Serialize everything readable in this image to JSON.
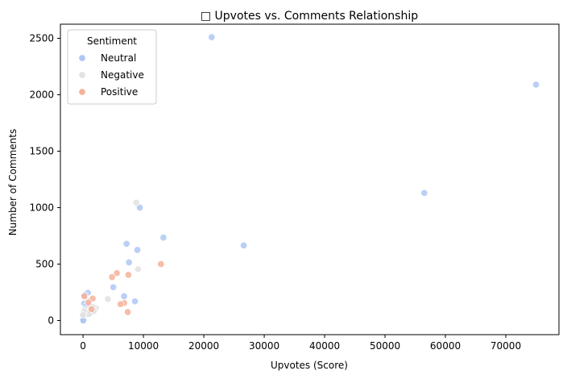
{
  "chart_data": {
    "type": "scatter",
    "title": "□ Upvotes vs. Comments Relationship",
    "xlabel": "Upvotes (Score)",
    "ylabel": "Number of Comments",
    "xlim": [
      -3750,
      78800
    ],
    "ylim": [
      -125,
      2625
    ],
    "xticks": [
      0,
      10000,
      20000,
      30000,
      40000,
      50000,
      60000,
      70000
    ],
    "yticks": [
      0,
      500,
      1000,
      1500,
      2000,
      2500
    ],
    "xtick_labels": [
      "0",
      "10000",
      "20000",
      "30000",
      "40000",
      "50000",
      "60000",
      "70000"
    ],
    "ytick_labels": [
      "0",
      "500",
      "1000",
      "1500",
      "2000",
      "2500"
    ],
    "grid": false,
    "legend": {
      "title": "Sentiment",
      "placement": "top-left"
    },
    "series": [
      {
        "name": "Neutral",
        "color": "#aec7f4",
        "points": [
          [
            21300,
            2510
          ],
          [
            75000,
            2090
          ],
          [
            56500,
            1130
          ],
          [
            9400,
            1000
          ],
          [
            13300,
            735
          ],
          [
            26600,
            665
          ],
          [
            7200,
            680
          ],
          [
            9000,
            625
          ],
          [
            7600,
            515
          ],
          [
            5000,
            295
          ],
          [
            6800,
            215
          ],
          [
            8600,
            170
          ],
          [
            800,
            245
          ],
          [
            300,
            225
          ],
          [
            200,
            150
          ],
          [
            500,
            130
          ],
          [
            1200,
            95
          ],
          [
            1400,
            75
          ],
          [
            700,
            55
          ],
          [
            100,
            40
          ],
          [
            0,
            20
          ],
          [
            -50,
            5
          ],
          [
            50,
            0
          ]
        ]
      },
      {
        "name": "Negative",
        "color": "#e2e2e2",
        "points": [
          [
            8800,
            1045
          ],
          [
            9100,
            455
          ],
          [
            4100,
            190
          ],
          [
            2100,
            110
          ],
          [
            1600,
            120
          ],
          [
            900,
            175
          ],
          [
            300,
            100
          ],
          [
            600,
            75
          ],
          [
            1000,
            60
          ],
          [
            200,
            80
          ],
          [
            1800,
            85
          ],
          [
            0,
            50
          ]
        ]
      },
      {
        "name": "Positive",
        "color": "#f5b29a",
        "points": [
          [
            12900,
            500
          ],
          [
            5600,
            420
          ],
          [
            7500,
            405
          ],
          [
            4800,
            385
          ],
          [
            6800,
            155
          ],
          [
            6200,
            145
          ],
          [
            7400,
            75
          ],
          [
            1600,
            195
          ],
          [
            200,
            215
          ],
          [
            1400,
            100
          ],
          [
            900,
            160
          ]
        ]
      }
    ]
  }
}
